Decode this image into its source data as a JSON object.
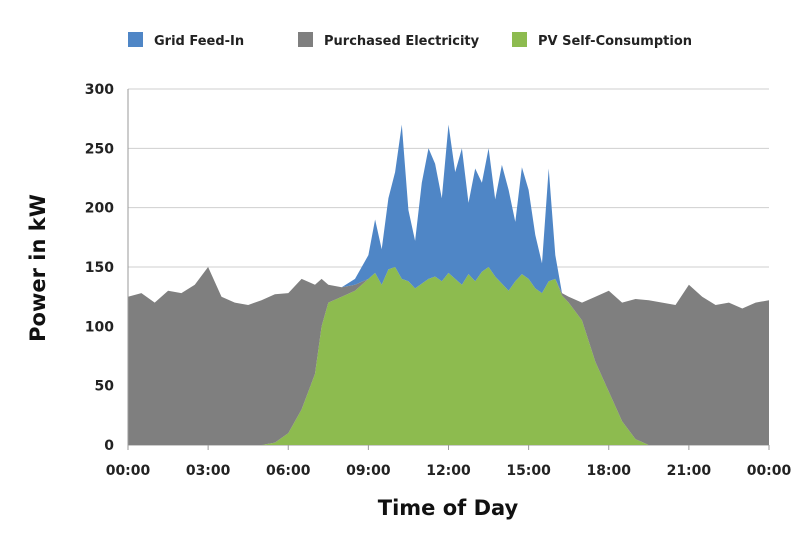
{
  "chart_data": {
    "type": "area",
    "title": "",
    "xlabel": "Time of Day",
    "ylabel": "Power in kW",
    "ylim": [
      0,
      300
    ],
    "xlim_hours": [
      0,
      24
    ],
    "yticks": [
      0,
      50,
      100,
      150,
      200,
      250,
      300
    ],
    "xtick_labels": [
      "00:00",
      "03:00",
      "06:00",
      "09:00",
      "12:00",
      "15:00",
      "18:00",
      "21:00",
      "00:00"
    ],
    "grid": "horizontal",
    "legend_position": "top",
    "stacked": true,
    "x_hours": [
      0,
      0.5,
      1,
      1.5,
      2,
      2.5,
      3,
      3.5,
      4,
      4.5,
      5,
      5.5,
      6,
      6.5,
      7,
      7.25,
      7.5,
      8,
      8.5,
      9,
      9.25,
      9.5,
      9.75,
      10,
      10.25,
      10.5,
      10.75,
      11,
      11.25,
      11.5,
      11.75,
      12,
      12.25,
      12.5,
      12.75,
      13,
      13.25,
      13.5,
      13.75,
      14,
      14.25,
      14.5,
      14.75,
      15,
      15.25,
      15.5,
      15.75,
      16,
      16.25,
      16.5,
      17,
      17.5,
      18,
      18.5,
      19,
      19.5,
      20,
      20.5,
      21,
      21.5,
      22,
      22.5,
      23,
      23.5,
      24
    ],
    "series": [
      {
        "name": "PV Self-Consumption",
        "color": "#8dbb4f",
        "values": [
          0,
          0,
          0,
          0,
          0,
          0,
          0,
          0,
          0,
          0,
          0,
          2,
          10,
          30,
          60,
          100,
          120,
          125,
          130,
          140,
          145,
          135,
          148,
          150,
          140,
          138,
          132,
          136,
          140,
          142,
          138,
          145,
          140,
          135,
          144,
          138,
          146,
          150,
          142,
          136,
          130,
          138,
          144,
          140,
          132,
          128,
          138,
          140,
          126,
          120,
          105,
          70,
          45,
          20,
          5,
          0,
          0,
          0,
          0,
          0,
          0,
          0,
          0,
          0,
          0
        ]
      },
      {
        "name": "Purchased Electricity",
        "color": "#7f7f7f",
        "values": [
          125,
          128,
          120,
          130,
          128,
          135,
          150,
          125,
          120,
          118,
          122,
          125,
          118,
          110,
          75,
          40,
          15,
          8,
          5,
          0,
          0,
          0,
          0,
          0,
          0,
          0,
          0,
          0,
          0,
          0,
          0,
          0,
          0,
          0,
          0,
          0,
          0,
          0,
          0,
          0,
          0,
          0,
          0,
          0,
          0,
          0,
          0,
          0,
          2,
          5,
          15,
          55,
          85,
          100,
          118,
          122,
          120,
          118,
          135,
          125,
          118,
          120,
          115,
          120,
          122
        ]
      },
      {
        "name": "Grid Feed-In",
        "color": "#4f86c6",
        "values": [
          0,
          0,
          0,
          0,
          0,
          0,
          0,
          0,
          0,
          0,
          0,
          0,
          0,
          0,
          0,
          0,
          0,
          0,
          5,
          20,
          45,
          30,
          60,
          80,
          130,
          60,
          40,
          85,
          110,
          95,
          70,
          125,
          90,
          115,
          60,
          95,
          75,
          100,
          65,
          100,
          85,
          50,
          90,
          75,
          45,
          25,
          95,
          20,
          0,
          0,
          0,
          0,
          0,
          0,
          0,
          0,
          0,
          0,
          0,
          0,
          0,
          0,
          0,
          0,
          0
        ]
      }
    ]
  }
}
